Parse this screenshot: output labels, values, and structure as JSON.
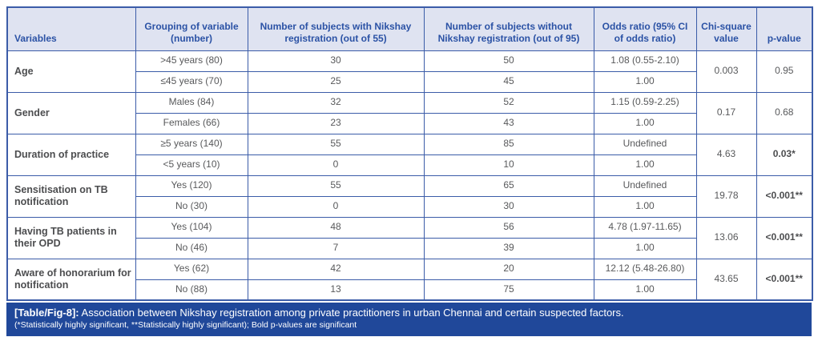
{
  "table": {
    "columns": [
      "Variables",
      "Grouping of variable (number)",
      "Number of subjects with Nikshay registration (out of 55)",
      "Number of subjects without Nikshay registration (out of 95)",
      "Odds ratio (95% CI of odds ratio)",
      "Chi-square value",
      "p-value"
    ],
    "groups": [
      {
        "variable": "Age",
        "rows": [
          {
            "grouping": ">45 years (80)",
            "with_registration": "30",
            "without_registration": "50",
            "odds_ratio": "1.08 (0.55-2.10)"
          },
          {
            "grouping": "≤45 years (70)",
            "with_registration": "25",
            "without_registration": "45",
            "odds_ratio": "1.00"
          }
        ],
        "chi_square": "0.003",
        "p_value": "0.95",
        "p_bold": false
      },
      {
        "variable": "Gender",
        "rows": [
          {
            "grouping": "Males (84)",
            "with_registration": "32",
            "without_registration": "52",
            "odds_ratio": "1.15 (0.59-2.25)"
          },
          {
            "grouping": "Females (66)",
            "with_registration": "23",
            "without_registration": "43",
            "odds_ratio": "1.00"
          }
        ],
        "chi_square": "0.17",
        "p_value": "0.68",
        "p_bold": false
      },
      {
        "variable": "Duration of practice",
        "rows": [
          {
            "grouping": "≥5 years (140)",
            "with_registration": "55",
            "without_registration": "85",
            "odds_ratio": "Undefined"
          },
          {
            "grouping": "<5 years (10)",
            "with_registration": "0",
            "without_registration": "10",
            "odds_ratio": "1.00"
          }
        ],
        "chi_square": "4.63",
        "p_value": "0.03*",
        "p_bold": true
      },
      {
        "variable": "Sensitisation on TB notification",
        "rows": [
          {
            "grouping": "Yes (120)",
            "with_registration": "55",
            "without_registration": "65",
            "odds_ratio": "Undefined"
          },
          {
            "grouping": "No (30)",
            "with_registration": "0",
            "without_registration": "30",
            "odds_ratio": "1.00"
          }
        ],
        "chi_square": "19.78",
        "p_value": "<0.001**",
        "p_bold": true
      },
      {
        "variable": "Having TB patients in their OPD",
        "rows": [
          {
            "grouping": "Yes (104)",
            "with_registration": "48",
            "without_registration": "56",
            "odds_ratio": "4.78 (1.97-11.65)"
          },
          {
            "grouping": "No (46)",
            "with_registration": "7",
            "without_registration": "39",
            "odds_ratio": "1.00"
          }
        ],
        "chi_square": "13.06",
        "p_value": "<0.001**",
        "p_bold": true
      },
      {
        "variable": "Aware of honorarium for notification",
        "rows": [
          {
            "grouping": "Yes (62)",
            "with_registration": "42",
            "without_registration": "20",
            "odds_ratio": "12.12 (5.48-26.80)"
          },
          {
            "grouping": "No (88)",
            "with_registration": "13",
            "without_registration": "75",
            "odds_ratio": "1.00"
          }
        ],
        "chi_square": "43.65",
        "p_value": "<0.001**",
        "p_bold": true
      }
    ]
  },
  "footer": {
    "label": "[Table/Fig-8]:",
    "caption": " Association between Nikshay registration among private practitioners in urban Chennai and certain suspected factors.",
    "footnote": "(*Statistically highly significant, **Statistically highly significant); Bold p-values are significant"
  },
  "colors": {
    "border": "#3b5ca8",
    "header_background": "#dfe3f1",
    "header_text": "#2b52a5",
    "body_text": "#58595b",
    "footer_background": "#20489a",
    "footer_text": "#ffffff"
  }
}
